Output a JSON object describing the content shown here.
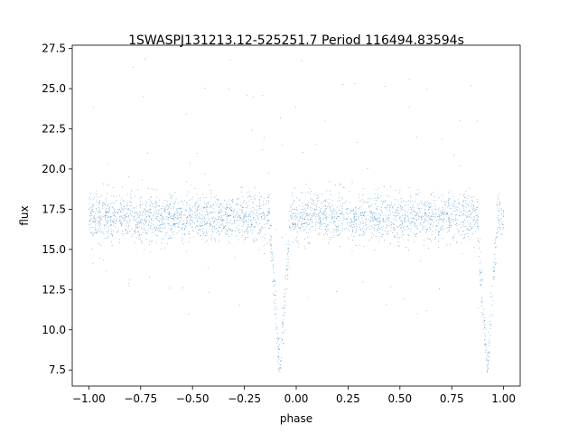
{
  "chart_data": {
    "type": "scatter",
    "title": "1SWASPJ131213.12-525251.7 Period 116494.83594s",
    "xlabel": "phase",
    "ylabel": "flux",
    "xlim": [
      -1.08,
      1.08
    ],
    "ylim": [
      6.5,
      27.7
    ],
    "xticks": [
      -1.0,
      -0.75,
      -0.5,
      -0.25,
      0.0,
      0.25,
      0.5,
      0.75,
      1.0
    ],
    "xtick_labels": [
      "−1.00",
      "−0.75",
      "−0.50",
      "−0.25",
      "0.00",
      "0.25",
      "0.50",
      "0.75",
      "1.00"
    ],
    "yticks": [
      7.5,
      10.0,
      12.5,
      15.0,
      17.5,
      20.0,
      22.5,
      25.0,
      27.5
    ],
    "ytick_labels": [
      "7.5",
      "10.0",
      "12.5",
      "15.0",
      "17.5",
      "20.0",
      "22.5",
      "25.0",
      "27.5"
    ],
    "grid": false,
    "marker_color": "#1f77b4",
    "series": [
      {
        "x_range": [
          -1.0,
          1.0
        ],
        "baseline_flux": 17.0,
        "scatter_sd": 0.75,
        "eclipses": [
          {
            "center": -0.08,
            "min_flux": 7.4,
            "half_width": 0.05
          },
          {
            "center": 0.92,
            "min_flux": 7.4,
            "half_width": 0.05
          }
        ]
      }
    ]
  }
}
